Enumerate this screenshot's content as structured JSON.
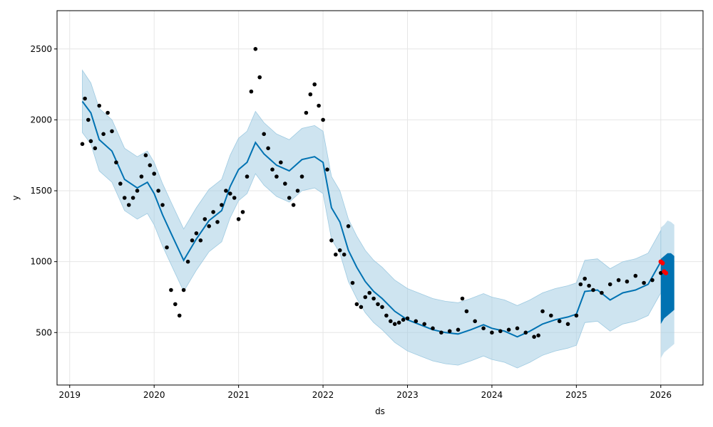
{
  "chart_data": {
    "type": "line",
    "xlabel": "ds",
    "ylabel": "y",
    "xlim": [
      2018.85,
      2026.5
    ],
    "ylim": [
      130,
      2770
    ],
    "x_ticks": [
      2019,
      2020,
      2021,
      2022,
      2023,
      2024,
      2025,
      2026
    ],
    "x_tick_labels": [
      "2019",
      "2020",
      "2021",
      "2022",
      "2023",
      "2024",
      "2025",
      "2026"
    ],
    "y_ticks": [
      500,
      1000,
      1500,
      2000,
      2500
    ],
    "y_tick_labels": [
      "500",
      "1000",
      "1500",
      "2000",
      "2500"
    ],
    "grid": true,
    "colors": {
      "forecast": "#0072B2",
      "interval": "#9ECAE1",
      "observed": "#000000",
      "recent": "#FF0000",
      "grid": "#E6E6E6"
    },
    "series": [
      {
        "role": "forecast",
        "x": [
          2019.15,
          2019.25,
          2019.35,
          2019.5,
          2019.65,
          2019.8,
          2019.92,
          2020.0,
          2020.1,
          2020.2,
          2020.35,
          2020.5,
          2020.65,
          2020.8,
          2020.9,
          2021.0,
          2021.1,
          2021.2,
          2021.3,
          2021.45,
          2021.6,
          2021.75,
          2021.9,
          2022.0,
          2022.1,
          2022.2,
          2022.3,
          2022.4,
          2022.5,
          2022.6,
          2022.7,
          2022.85,
          2023.0,
          2023.15,
          2023.3,
          2023.45,
          2023.6,
          2023.75,
          2023.9,
          2024.0,
          2024.15,
          2024.3,
          2024.45,
          2024.6,
          2024.75,
          2024.9,
          2025.0,
          2025.1,
          2025.25,
          2025.4,
          2025.55,
          2025.7,
          2025.85,
          2026.0
        ],
        "y": [
          2130,
          2050,
          1860,
          1780,
          1580,
          1520,
          1560,
          1480,
          1330,
          1200,
          1010,
          1160,
          1290,
          1360,
          1530,
          1650,
          1700,
          1840,
          1760,
          1680,
          1640,
          1720,
          1740,
          1700,
          1380,
          1280,
          1080,
          960,
          860,
          790,
          740,
          650,
          590,
          555,
          520,
          500,
          490,
          520,
          555,
          530,
          510,
          470,
          510,
          560,
          590,
          610,
          630,
          790,
          800,
          730,
          780,
          800,
          840,
          1000
        ]
      },
      {
        "role": "interval_upper",
        "x": [
          2019.15,
          2019.25,
          2019.35,
          2019.5,
          2019.65,
          2019.8,
          2019.92,
          2020.0,
          2020.1,
          2020.2,
          2020.35,
          2020.5,
          2020.65,
          2020.8,
          2020.9,
          2021.0,
          2021.1,
          2021.2,
          2021.3,
          2021.45,
          2021.6,
          2021.75,
          2021.9,
          2022.0,
          2022.1,
          2022.2,
          2022.3,
          2022.4,
          2022.5,
          2022.6,
          2022.7,
          2022.85,
          2023.0,
          2023.15,
          2023.3,
          2023.45,
          2023.6,
          2023.75,
          2023.9,
          2024.0,
          2024.15,
          2024.3,
          2024.45,
          2024.6,
          2024.75,
          2024.9,
          2025.0,
          2025.1,
          2025.25,
          2025.4,
          2025.55,
          2025.7,
          2025.85,
          2026.0
        ],
        "y": [
          2350,
          2260,
          2080,
          2000,
          1800,
          1740,
          1780,
          1700,
          1550,
          1420,
          1230,
          1380,
          1510,
          1580,
          1750,
          1870,
          1920,
          2060,
          1980,
          1900,
          1860,
          1940,
          1960,
          1920,
          1600,
          1500,
          1300,
          1180,
          1080,
          1010,
          960,
          870,
          810,
          775,
          740,
          720,
          710,
          740,
          775,
          750,
          730,
          690,
          730,
          780,
          810,
          830,
          850,
          1010,
          1020,
          950,
          1000,
          1020,
          1060,
          1220
        ]
      },
      {
        "role": "interval_lower",
        "x": [
          2019.15,
          2019.25,
          2019.35,
          2019.5,
          2019.65,
          2019.8,
          2019.92,
          2020.0,
          2020.1,
          2020.2,
          2020.35,
          2020.5,
          2020.65,
          2020.8,
          2020.9,
          2021.0,
          2021.1,
          2021.2,
          2021.3,
          2021.45,
          2021.6,
          2021.75,
          2021.9,
          2022.0,
          2022.1,
          2022.2,
          2022.3,
          2022.4,
          2022.5,
          2022.6,
          2022.7,
          2022.85,
          2023.0,
          2023.15,
          2023.3,
          2023.45,
          2023.6,
          2023.75,
          2023.9,
          2024.0,
          2024.15,
          2024.3,
          2024.45,
          2024.6,
          2024.75,
          2024.9,
          2025.0,
          2025.1,
          2025.25,
          2025.4,
          2025.55,
          2025.7,
          2025.85,
          2026.0
        ],
        "y": [
          1910,
          1830,
          1640,
          1560,
          1360,
          1300,
          1340,
          1260,
          1110,
          980,
          790,
          940,
          1070,
          1140,
          1310,
          1430,
          1480,
          1620,
          1540,
          1460,
          1420,
          1500,
          1520,
          1480,
          1160,
          1060,
          860,
          740,
          640,
          570,
          520,
          430,
          370,
          335,
          300,
          280,
          270,
          300,
          335,
          310,
          290,
          250,
          290,
          340,
          370,
          390,
          410,
          570,
          580,
          510,
          560,
          580,
          620,
          780
        ]
      },
      {
        "role": "observed",
        "x": [
          2019.15,
          2019.18,
          2019.22,
          2019.25,
          2019.3,
          2019.35,
          2019.4,
          2019.45,
          2019.5,
          2019.55,
          2019.6,
          2019.65,
          2019.7,
          2019.75,
          2019.8,
          2019.85,
          2019.9,
          2019.95,
          2020.0,
          2020.05,
          2020.1,
          2020.15,
          2020.2,
          2020.25,
          2020.3,
          2020.35,
          2020.4,
          2020.45,
          2020.5,
          2020.55,
          2020.6,
          2020.65,
          2020.7,
          2020.75,
          2020.8,
          2020.85,
          2020.9,
          2020.95,
          2021.0,
          2021.05,
          2021.1,
          2021.15,
          2021.2,
          2021.25,
          2021.3,
          2021.35,
          2021.4,
          2021.45,
          2021.5,
          2021.55,
          2021.6,
          2021.65,
          2021.7,
          2021.75,
          2021.8,
          2021.85,
          2021.9,
          2021.95,
          2022.0,
          2022.05,
          2022.1,
          2022.15,
          2022.2,
          2022.25,
          2022.3,
          2022.35,
          2022.4,
          2022.45,
          2022.5,
          2022.55,
          2022.6,
          2022.65,
          2022.7,
          2022.75,
          2022.8,
          2022.85,
          2022.9,
          2022.95,
          2023.0,
          2023.1,
          2023.2,
          2023.3,
          2023.4,
          2023.5,
          2023.6,
          2023.65,
          2023.7,
          2023.8,
          2023.9,
          2024.0,
          2024.1,
          2024.2,
          2024.3,
          2024.4,
          2024.5,
          2024.55,
          2024.6,
          2024.7,
          2024.8,
          2024.9,
          2025.0,
          2025.05,
          2025.1,
          2025.15,
          2025.2,
          2025.3,
          2025.4,
          2025.5,
          2025.6,
          2025.7,
          2025.8,
          2025.9,
          2026.0
        ],
        "y": [
          1830,
          2150,
          2000,
          1850,
          1800,
          2100,
          1900,
          2050,
          1920,
          1700,
          1550,
          1450,
          1400,
          1450,
          1500,
          1600,
          1750,
          1680,
          1620,
          1500,
          1400,
          1100,
          800,
          700,
          620,
          800,
          1000,
          1150,
          1200,
          1150,
          1300,
          1250,
          1350,
          1280,
          1400,
          1500,
          1480,
          1450,
          1300,
          1350,
          1600,
          2200,
          2500,
          2300,
          1900,
          1800,
          1650,
          1600,
          1700,
          1550,
          1450,
          1400,
          1500,
          1600,
          2050,
          2180,
          2250,
          2100,
          2000,
          1650,
          1150,
          1050,
          1080,
          1050,
          1250,
          850,
          700,
          680,
          750,
          780,
          740,
          700,
          680,
          620,
          580,
          560,
          570,
          590,
          600,
          580,
          560,
          530,
          500,
          510,
          520,
          740,
          650,
          580,
          530,
          500,
          510,
          520,
          530,
          500,
          470,
          480,
          650,
          620,
          580,
          560,
          620,
          840,
          880,
          830,
          800,
          780,
          840,
          870,
          860,
          900,
          850,
          870,
          920
        ]
      },
      {
        "role": "recent",
        "x": [
          2026.0,
          2026.02,
          2026.04,
          2026.06
        ],
        "y": [
          1000,
          990,
          930,
          920
        ]
      },
      {
        "role": "forecast_tail",
        "x": [
          2026.0,
          2026.04,
          2026.08,
          2026.12,
          2026.16
        ],
        "lower": [
          560,
          600,
          620,
          640,
          660
        ],
        "upper": [
          1020,
          1040,
          1060,
          1060,
          1040
        ]
      },
      {
        "role": "forecast_tail_interval",
        "x": [
          2026.0,
          2026.04,
          2026.08,
          2026.12,
          2026.16
        ],
        "lower": [
          320,
          360,
          380,
          400,
          420
        ],
        "upper": [
          1240,
          1260,
          1290,
          1280,
          1260
        ]
      }
    ]
  }
}
